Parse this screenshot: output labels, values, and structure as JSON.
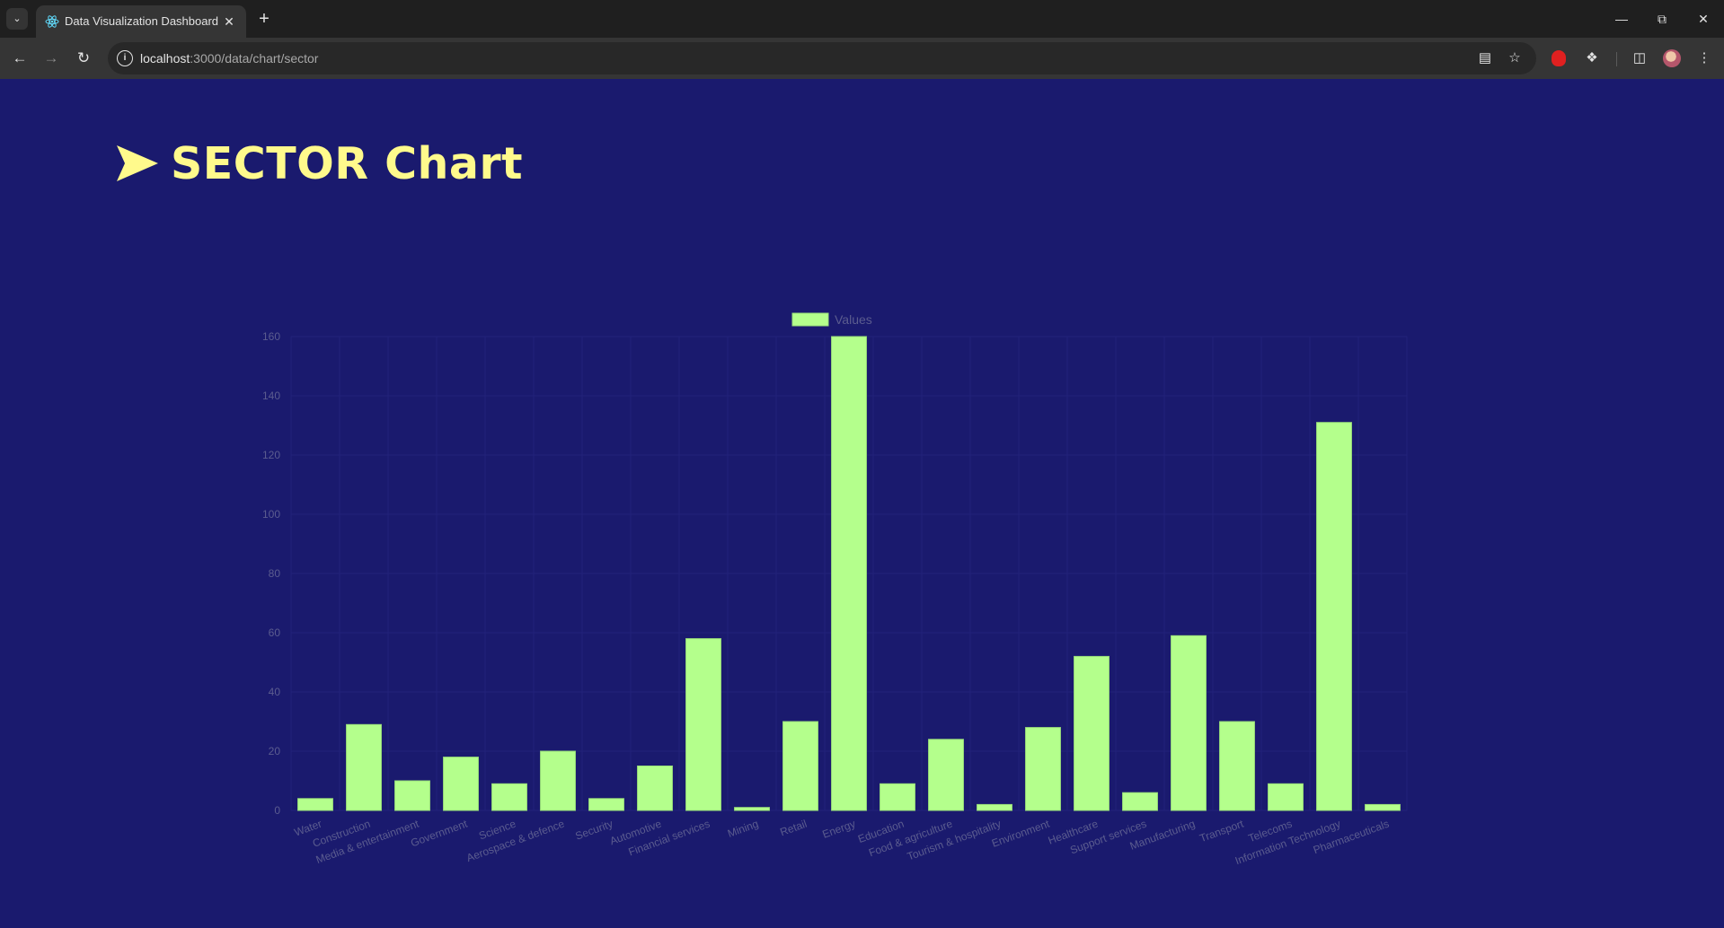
{
  "browser": {
    "tab_title": "Data Visualization Dashboard",
    "url_host": "localhost",
    "url_path": ":3000/data/chart/sector"
  },
  "page": {
    "heading": "SECTOR Chart"
  },
  "colors": {
    "background": "#1a1a6e",
    "heading": "#fffa8c",
    "bar_fill": "#b4ff8c",
    "bar_border": "#9ae07a",
    "tick_text": "#5b5c8f",
    "grid": "#22227a"
  },
  "chart_data": {
    "type": "bar",
    "categories": [
      "Water",
      "Construction",
      "Media & entertainment",
      "Government",
      "Science",
      "Aerospace & defence",
      "Security",
      "Automotive",
      "Financial services",
      "Mining",
      "Retail",
      "Energy",
      "Education",
      "Food & agriculture",
      "Tourism & hospitality",
      "Environment",
      "Healthcare",
      "Support services",
      "Manufacturing",
      "Transport",
      "Telecoms",
      "Information Technology",
      "Pharmaceuticals"
    ],
    "series": [
      {
        "name": "Values",
        "values": [
          4,
          29,
          10,
          18,
          9,
          20,
          4,
          15,
          58,
          1,
          30,
          160,
          9,
          24,
          2,
          28,
          52,
          6,
          59,
          30,
          9,
          131,
          2
        ]
      }
    ],
    "ylim": [
      0,
      160
    ],
    "yticks": [
      0,
      20,
      40,
      60,
      80,
      100,
      120,
      140,
      160
    ],
    "legend_position": "top",
    "grid": true
  }
}
